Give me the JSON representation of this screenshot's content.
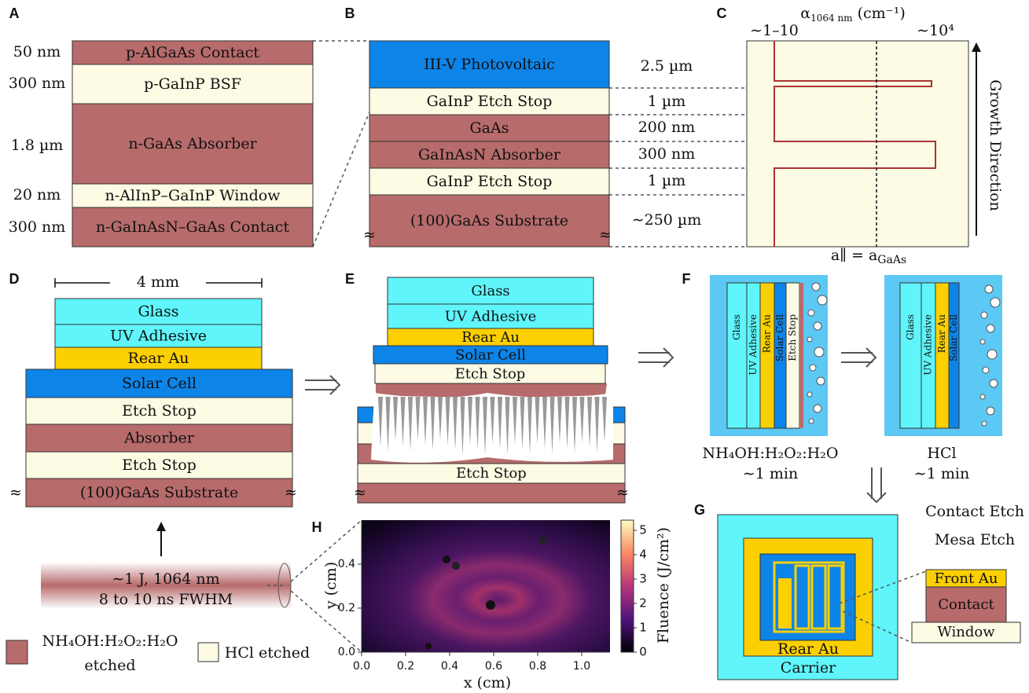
{
  "panels": [
    "A",
    "B",
    "C",
    "D",
    "E",
    "F",
    "G",
    "H"
  ],
  "a": {
    "thicknesses": [
      "50 nm",
      "300 nm",
      "1.8 µm",
      "20 nm",
      "300 nm"
    ],
    "layers": [
      "p-AlGaAs Contact",
      "p-GaInP BSF",
      "n-GaAs Absorber",
      "n-AlInP–GaInP Window",
      "n-GaInAsN–GaAs Contact"
    ]
  },
  "b": {
    "layers": [
      "III-V Photovoltaic",
      "GaInP Etch Stop",
      "GaAs",
      "GaInAsN Absorber",
      "GaInP Etch Stop",
      "(100)GaAs Substrate"
    ],
    "thicknesses": [
      "2.5 µm",
      "1 µm",
      "200 nm",
      "300 nm",
      "1 µm",
      "∼250 µm"
    ],
    "break": "≈"
  },
  "c": {
    "axis_title": {
      "main": "α",
      "sub": "1064 nm",
      "tail": " (cm⁻¹)"
    },
    "low": "∼1–10",
    "high": "∼10⁴",
    "lattice": {
      "main": "a∥ = a",
      "sub": "GaAs"
    },
    "growth": "Growth Direction"
  },
  "d": {
    "scale": "4 mm",
    "layers": [
      "Glass",
      "UV Adhesive",
      "Rear Au",
      "Solar Cell",
      "Etch Stop",
      "Absorber",
      "Etch Stop",
      "(100)GaAs Substrate"
    ]
  },
  "laser": {
    "line1": "∼1 J, 1064 nm",
    "line2": "8 to 10 ns FWHM"
  },
  "legend": {
    "etch1": "NH₄OH:H₂O₂:H₂O",
    "etch1_suffix": "etched",
    "etch2": "HCl etched"
  },
  "e": {
    "layers": [
      "Glass",
      "UV Adhesive",
      "Rear Au",
      "Solar Cell",
      "Etch Stop"
    ],
    "bottom": "Etch Stop"
  },
  "f": {
    "left_layers": [
      "Glass",
      "UV Adhesive",
      "Rear Au",
      "Solar Cell",
      "Etch Stop"
    ],
    "right_layers": [
      "Glass",
      "UV Adhesive",
      "Rear Au",
      "Solar Cell"
    ],
    "etchant1": "NH₄OH:H₂O₂:H₂O",
    "time1": "∼1 min",
    "etchant2": "HCl",
    "time2": "∼1 min"
  },
  "g": {
    "steps": [
      "Contact Etch",
      "Mesa Etch"
    ],
    "rear": "Rear Au",
    "carrier": "Carrier",
    "stack": [
      "Front Au",
      "Contact",
      "Window"
    ]
  },
  "h": {
    "xlabel": "x (cm)",
    "ylabel": "y (cm)",
    "xticks": [
      "0.0",
      "0.2",
      "0.4",
      "0.6",
      "0.8",
      "1.0"
    ],
    "yticks": [
      "0.0",
      "0.2",
      "0.4"
    ],
    "cticks": [
      "0",
      "1",
      "2",
      "3",
      "4",
      "5"
    ],
    "clabel": "Fluence (J/cm²)"
  }
}
